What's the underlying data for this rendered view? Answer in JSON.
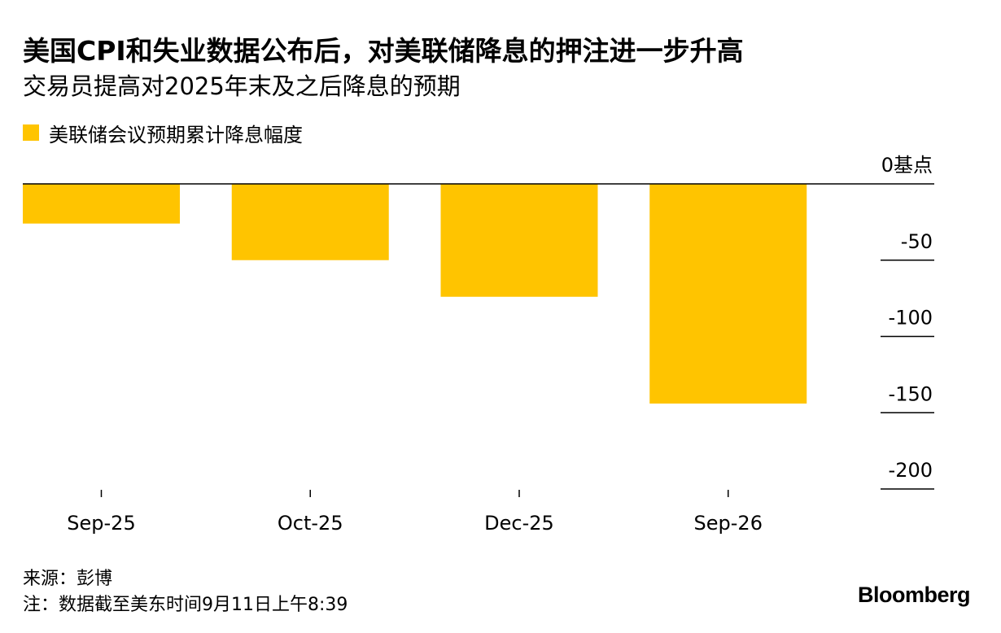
{
  "header": {
    "title": "美国CPI和失业数据公布后，对美联储降息的押注进一步升高",
    "subtitle": "交易员提高对2025年末及之后降息的预期"
  },
  "legend": {
    "label": "美联储会议预期累计降息幅度",
    "color": "#FFC400"
  },
  "chart_data": {
    "type": "bar",
    "categories": [
      "Sep-25",
      "Oct-25",
      "Dec-25",
      "Sep-26"
    ],
    "series": [
      {
        "name": "美联储会议预期累计降息幅度",
        "values": [
          -26,
          -50,
          -74,
          -144
        ],
        "color": "#FFC400"
      }
    ],
    "y_ticks": [
      0,
      -50,
      -100,
      -150,
      -200
    ],
    "y_tick_labels": [
      "0基点",
      "-50",
      "-100",
      "-150",
      "-200"
    ],
    "ylim": [
      -200,
      0
    ],
    "axis_position": "right",
    "grid": false,
    "legend_position": "top-left"
  },
  "footer": {
    "source": "来源：彭博",
    "note": "注：数据截至美东时间9月11日上午8:39",
    "brand": "Bloomberg"
  }
}
